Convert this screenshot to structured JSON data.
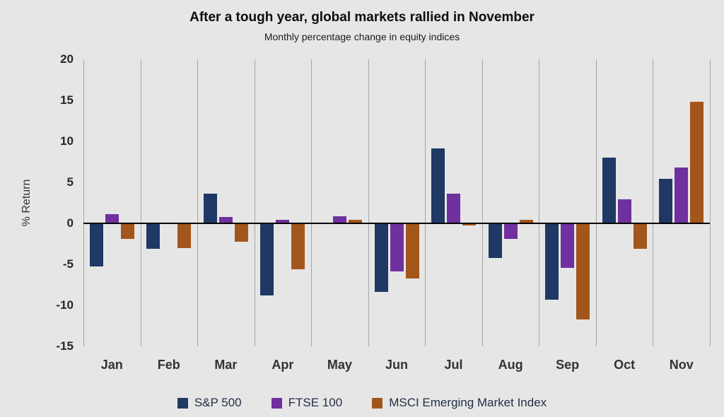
{
  "title": "After a tough year, global markets rallied in November",
  "subtitle": "Monthly percentage change in equity indices",
  "ylabel": "% Return",
  "chart_data": {
    "type": "bar",
    "categories": [
      "Jan",
      "Feb",
      "Mar",
      "Apr",
      "May",
      "Jun",
      "Jul",
      "Aug",
      "Sep",
      "Oct",
      "Nov"
    ],
    "series": [
      {
        "name": "S&P 500",
        "color": "#1F3864",
        "values": [
          -5.3,
          -3.1,
          3.6,
          -8.8,
          0.0,
          -8.4,
          9.1,
          -4.2,
          -9.3,
          8.0,
          5.4
        ]
      },
      {
        "name": "FTSE 100",
        "color": "#7030A0",
        "values": [
          1.1,
          -0.1,
          0.8,
          0.4,
          0.9,
          -5.9,
          3.6,
          -1.9,
          -5.4,
          2.9,
          6.8
        ]
      },
      {
        "name": "MSCI Emerging Market Index",
        "color": "#A3561C",
        "values": [
          -1.9,
          -3.0,
          -2.2,
          -5.6,
          0.4,
          -6.7,
          -0.3,
          0.4,
          -11.7,
          -3.1,
          14.8
        ]
      }
    ],
    "ylim": [
      -15,
      20
    ],
    "ytick_step": 5,
    "grid": "vertical",
    "legend_position": "bottom",
    "background_color": "#E7E6E6",
    "gridline_color": "#A6A6A6"
  }
}
